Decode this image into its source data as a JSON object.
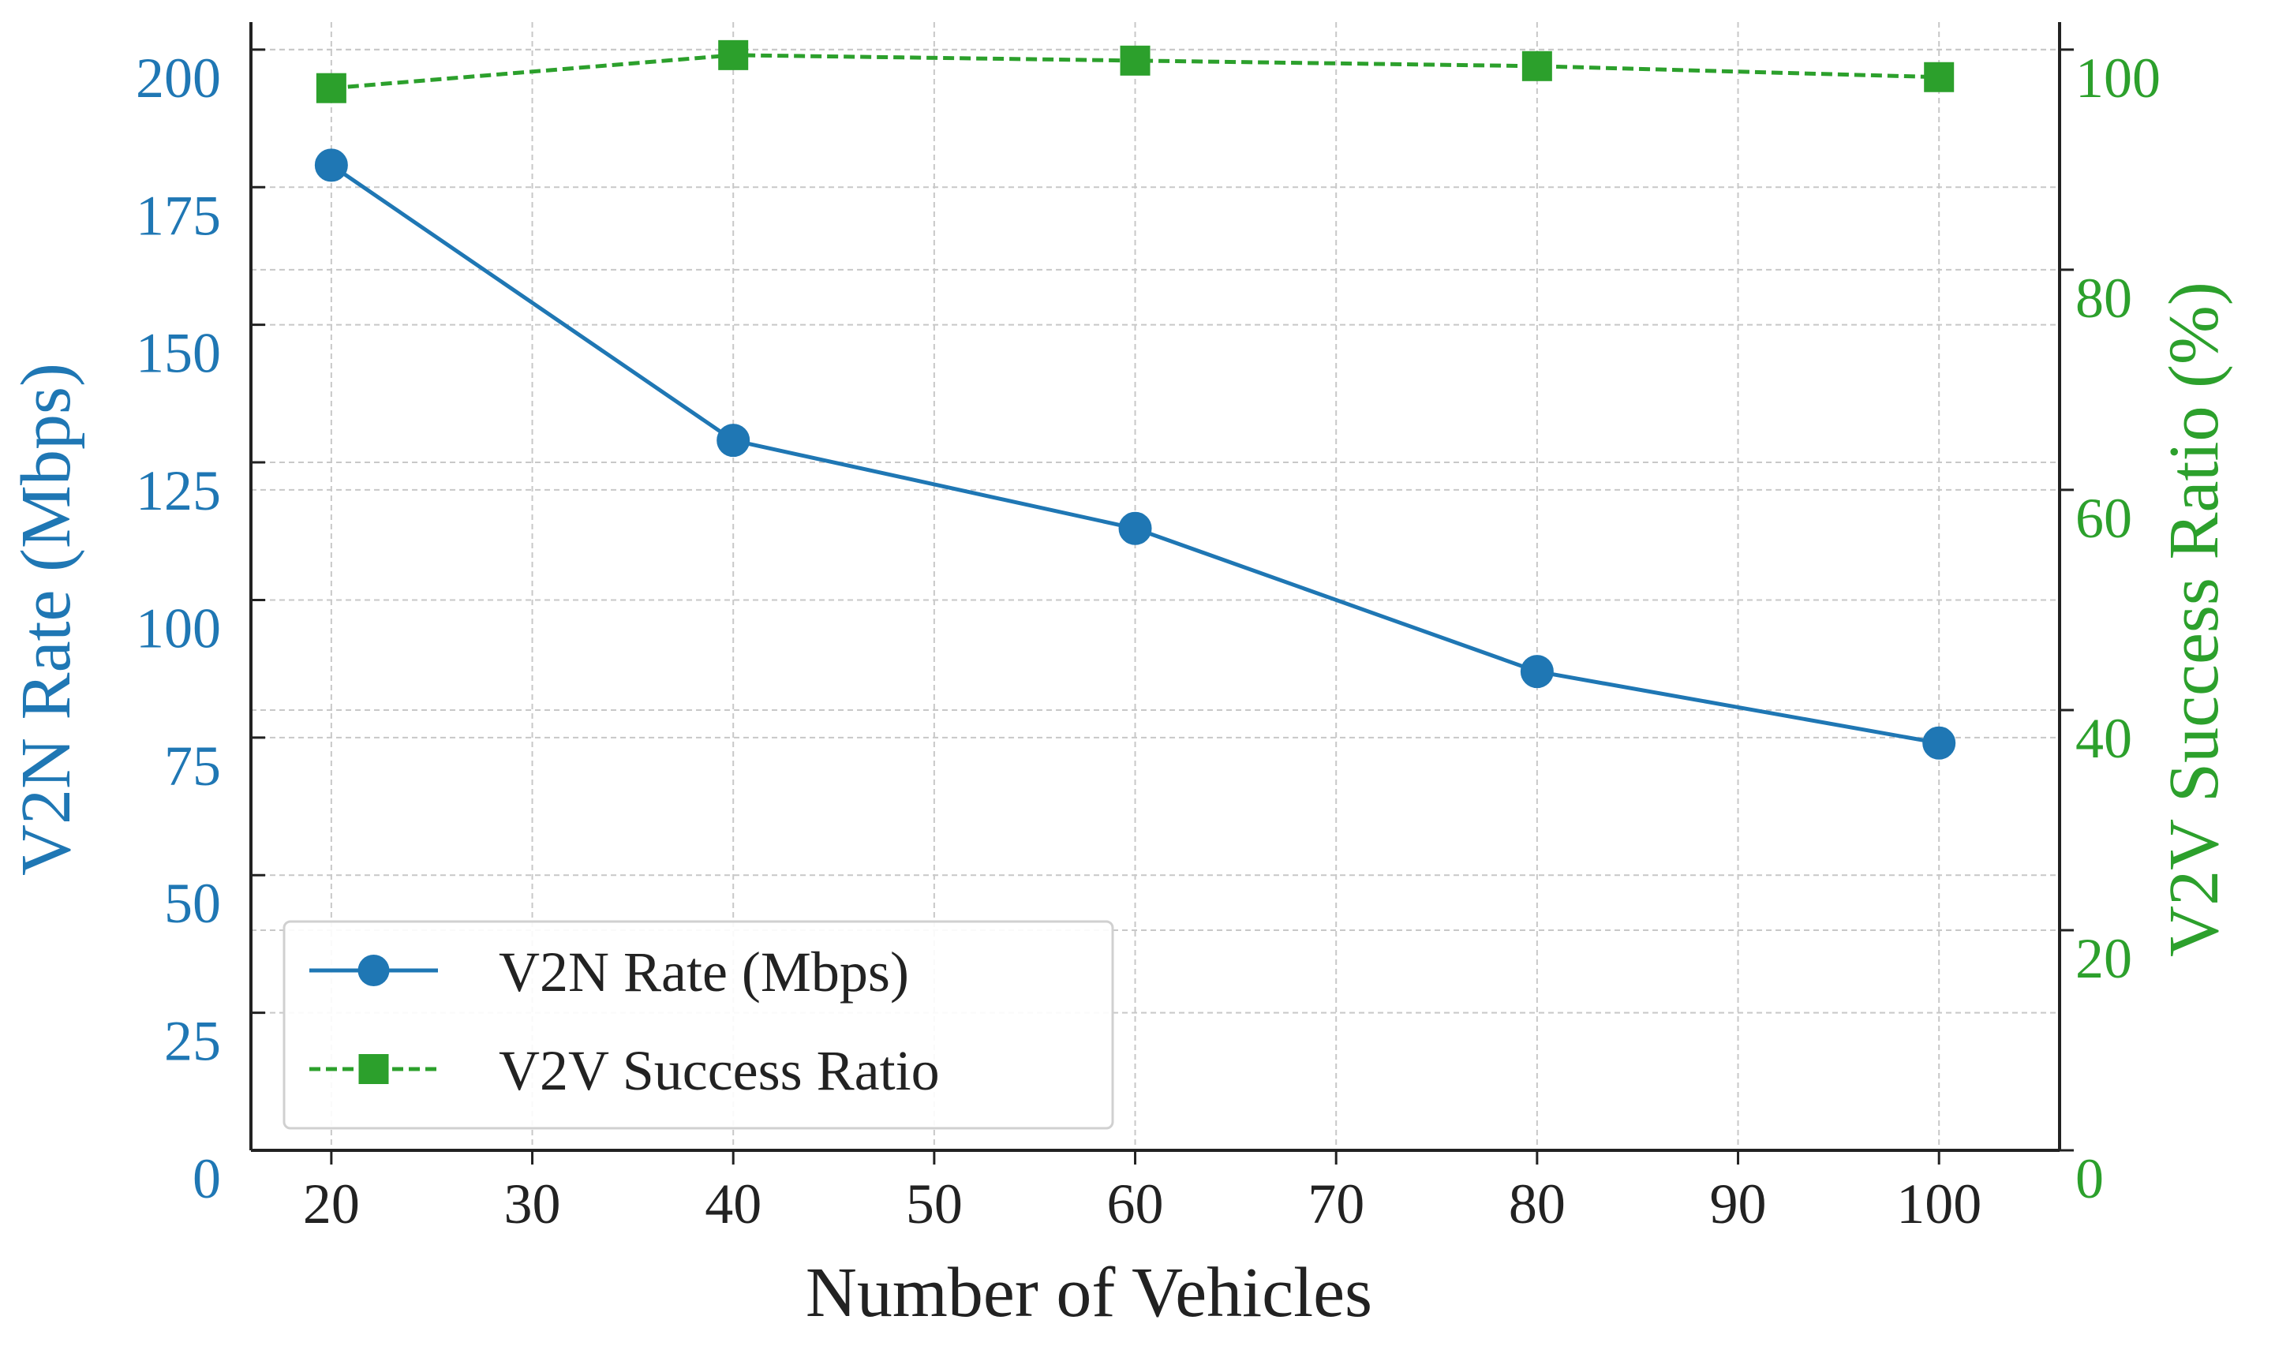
{
  "chart_data": {
    "type": "line",
    "title": "",
    "xlabel": "Number of Vehicles",
    "ylabel_left": "V2N Rate (Mbps)",
    "ylabel_right": "V2V Success Ratio (%)",
    "xlim": [
      16,
      106
    ],
    "ylim_left": [
      0,
      205
    ],
    "ylim_right": [
      0,
      102.5
    ],
    "x_ticks": [
      20,
      30,
      40,
      50,
      60,
      70,
      80,
      90,
      100
    ],
    "x_tick_labels": [
      "20",
      "30",
      "40",
      "50",
      "60",
      "70",
      "80",
      "90",
      "100"
    ],
    "y_left_ticks": [
      0,
      25,
      50,
      75,
      100,
      125,
      150,
      175,
      200
    ],
    "y_left_tick_labels": [
      "0",
      "25",
      "50",
      "75",
      "100",
      "125",
      "150",
      "175",
      "200"
    ],
    "y_right_ticks": [
      0,
      20,
      40,
      60,
      80,
      100
    ],
    "y_right_tick_labels": [
      "0",
      "20",
      "40",
      "60",
      "80",
      "100"
    ],
    "grid": true,
    "legend_position": "lower-left",
    "x": [
      20,
      40,
      60,
      80,
      100
    ],
    "series": [
      {
        "name": "V2N Rate (Mbps)",
        "axis": "left",
        "values": [
          179,
          129,
          113,
          87,
          74
        ],
        "color": "#1f77b4",
        "line_style": "solid",
        "marker": "circle"
      },
      {
        "name": "V2V Success Ratio",
        "axis": "right",
        "values": [
          96.5,
          99.5,
          99.0,
          98.5,
          97.5
        ],
        "color": "#2ca02c",
        "line_style": "dashed",
        "marker": "square"
      }
    ],
    "axis_colors": {
      "left": "#1f77b4",
      "right": "#2ca02c",
      "x": "#222222",
      "grid": "#c8c8c8"
    }
  }
}
